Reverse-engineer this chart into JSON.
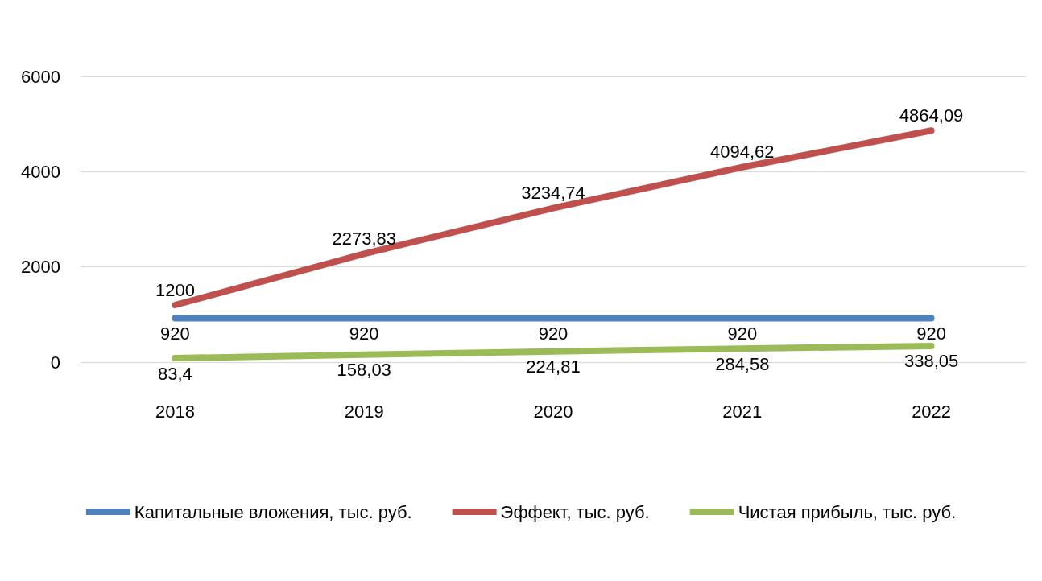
{
  "chart_data": {
    "type": "line",
    "categories": [
      "2018",
      "2019",
      "2020",
      "2021",
      "2022"
    ],
    "series": [
      {
        "name": "Капитальные вложения, тыс. руб.",
        "color": "#4f81bd",
        "values": [
          920,
          920,
          920,
          920,
          920
        ],
        "value_labels": [
          "920",
          "920",
          "920",
          "920",
          "920"
        ]
      },
      {
        "name": "Эффект, тыс. руб.",
        "color": "#c0504d",
        "values": [
          1200,
          2273.83,
          3234.74,
          4094.62,
          4864.09
        ],
        "value_labels": [
          "1200",
          "2273,83",
          "3234,74",
          "4094,62",
          "4864,09"
        ]
      },
      {
        "name": "Чистая прибыль, тыс. руб.",
        "color": "#9bbb59",
        "values": [
          83.4,
          158.03,
          224.81,
          284.58,
          338.05
        ],
        "value_labels": [
          "83,4",
          "158,03",
          "224,81",
          "284,58",
          "338,05"
        ]
      }
    ],
    "ylim": [
      0,
      6000
    ],
    "yticks": [
      0,
      2000,
      4000,
      6000
    ],
    "grid": "y",
    "legend": "bottom",
    "marker": "none",
    "line_style": "solid"
  }
}
